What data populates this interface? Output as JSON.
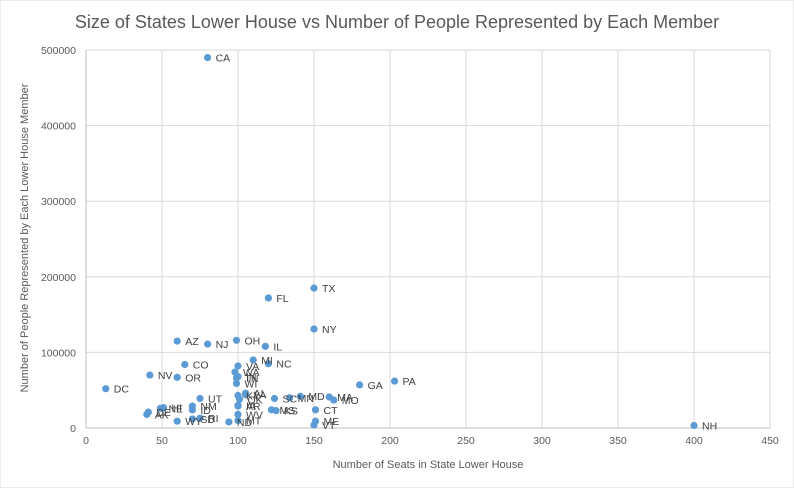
{
  "chart_data": {
    "type": "scatter",
    "title": "Size of States Lower House vs Number of People Represented by Each Member",
    "xlabel": "Number  of Seats in State Lower House",
    "ylabel": "Number  of People Represented  by Each Lower House Member",
    "xlim": [
      0,
      450
    ],
    "ylim": [
      0,
      500000
    ],
    "x_ticks": [
      "0",
      "50",
      "100",
      "150",
      "200",
      "250",
      "300",
      "350",
      "400",
      "450"
    ],
    "y_ticks": [
      "0",
      "100000",
      "200000",
      "300000",
      "400000",
      "500000"
    ],
    "marker_color": "#5b9bd5",
    "points": [
      {
        "label": "CA",
        "x": 80,
        "y": 490000
      },
      {
        "label": "TX",
        "x": 150,
        "y": 185000
      },
      {
        "label": "FL",
        "x": 120,
        "y": 172000
      },
      {
        "label": "NY",
        "x": 150,
        "y": 131000
      },
      {
        "label": "AZ",
        "x": 60,
        "y": 115000
      },
      {
        "label": "OH",
        "x": 99,
        "y": 116000
      },
      {
        "label": "NJ",
        "x": 80,
        "y": 111000
      },
      {
        "label": "IL",
        "x": 118,
        "y": 108000
      },
      {
        "label": "MI",
        "x": 110,
        "y": 90000
      },
      {
        "label": "NC",
        "x": 120,
        "y": 85000
      },
      {
        "label": "CO",
        "x": 65,
        "y": 84000
      },
      {
        "label": "VA",
        "x": 100,
        "y": 82000
      },
      {
        "label": "WA",
        "x": 98,
        "y": 74000
      },
      {
        "label": "TN",
        "x": 99,
        "y": 66000
      },
      {
        "label": "IN",
        "x": 100,
        "y": 68000
      },
      {
        "label": "WI",
        "x": 99,
        "y": 59000
      },
      {
        "label": "NV",
        "x": 42,
        "y": 70000
      },
      {
        "label": "OR",
        "x": 60,
        "y": 67000
      },
      {
        "label": "DC",
        "x": 13,
        "y": 52000
      },
      {
        "label": "GA",
        "x": 180,
        "y": 57000
      },
      {
        "label": "PA",
        "x": 203,
        "y": 62000
      },
      {
        "label": "AL",
        "x": 105,
        "y": 46000
      },
      {
        "label": "LA",
        "x": 105,
        "y": 44000
      },
      {
        "label": "KY",
        "x": 100,
        "y": 43000
      },
      {
        "label": "OK",
        "x": 101,
        "y": 38000
      },
      {
        "label": "SC",
        "x": 124,
        "y": 39000
      },
      {
        "label": "MN",
        "x": 134,
        "y": 40000
      },
      {
        "label": "MD",
        "x": 141,
        "y": 42000
      },
      {
        "label": "MA",
        "x": 160,
        "y": 41000
      },
      {
        "label": "MO",
        "x": 163,
        "y": 37000
      },
      {
        "label": "UT",
        "x": 75,
        "y": 39000
      },
      {
        "label": "NM",
        "x": 70,
        "y": 29000
      },
      {
        "label": "HI",
        "x": 51,
        "y": 27000
      },
      {
        "label": "ID",
        "x": 70,
        "y": 24000
      },
      {
        "label": "IA",
        "x": 100,
        "y": 30000
      },
      {
        "label": "AR",
        "x": 100,
        "y": 29000
      },
      {
        "label": "MS",
        "x": 122,
        "y": 24000
      },
      {
        "label": "KS",
        "x": 125,
        "y": 23000
      },
      {
        "label": "CT",
        "x": 151,
        "y": 24000
      },
      {
        "label": "AK",
        "x": 40,
        "y": 18000
      },
      {
        "label": "DE",
        "x": 41,
        "y": 21000
      },
      {
        "label": "WV",
        "x": 100,
        "y": 18000
      },
      {
        "label": "NE",
        "x": 49,
        "y": 26000
      },
      {
        "label": "SD",
        "x": 70,
        "y": 12000
      },
      {
        "label": "RI",
        "x": 75,
        "y": 13000
      },
      {
        "label": "WY",
        "x": 60,
        "y": 9000
      },
      {
        "label": "ND",
        "x": 94,
        "y": 8000
      },
      {
        "label": "MT",
        "x": 100,
        "y": 10000
      },
      {
        "label": "ME",
        "x": 151,
        "y": 9000
      },
      {
        "label": "VT",
        "x": 150,
        "y": 4000
      },
      {
        "label": "NH",
        "x": 400,
        "y": 3300
      }
    ]
  }
}
